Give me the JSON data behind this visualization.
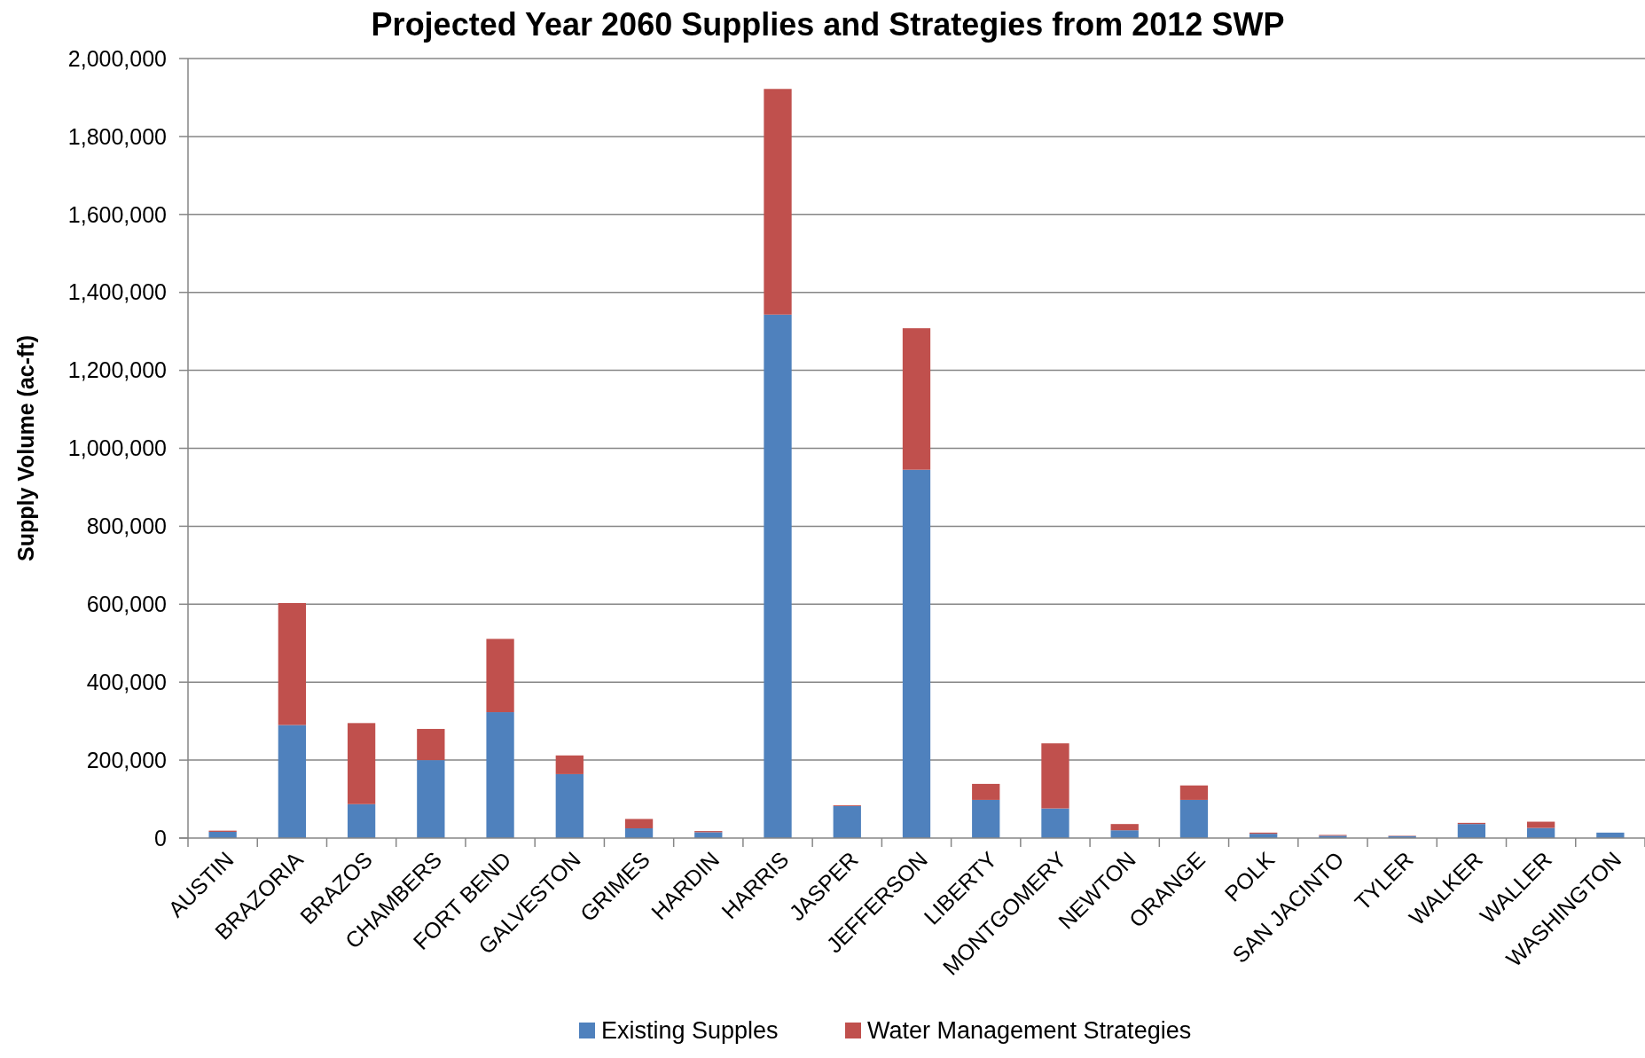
{
  "chart_data": {
    "type": "bar",
    "title": "Projected Year 2060 Supplies and Strategies from 2012 SWP",
    "ylabel": "Supply Volume (ac-ft)",
    "categories": [
      "AUSTIN",
      "BRAZORIA",
      "BRAZOS",
      "CHAMBERS",
      "FORT BEND",
      "GALVESTON",
      "GRIMES",
      "HARDIN",
      "HARRIS",
      "JASPER",
      "JEFFERSON",
      "LIBERTY",
      "MONTGOMERY",
      "NEWTON",
      "ORANGE",
      "POLK",
      "SAN JACINTO",
      "TYLER",
      "WALKER",
      "WALLER",
      "WASHINGTON"
    ],
    "series": [
      {
        "name": "Existing Supples",
        "color": "#4f81bd",
        "values": [
          16000,
          290000,
          87000,
          200000,
          323000,
          164000,
          25000,
          15000,
          1343000,
          82000,
          945000,
          98000,
          76000,
          20000,
          98000,
          11000,
          6000,
          5000,
          36000,
          26000,
          14000
        ]
      },
      {
        "name": "Water Management Strategies",
        "color": "#c0504d",
        "values": [
          3000,
          313000,
          208000,
          80000,
          188000,
          48000,
          24000,
          3000,
          579000,
          2000,
          363000,
          41000,
          167000,
          16000,
          37000,
          3000,
          2000,
          1000,
          3000,
          16000,
          0
        ]
      }
    ],
    "stacked": true,
    "ylim": [
      0,
      2000000
    ],
    "yticks": [
      {
        "value": 0,
        "label": "0"
      },
      {
        "value": 200000,
        "label": "200,000"
      },
      {
        "value": 400000,
        "label": "400,000"
      },
      {
        "value": 600000,
        "label": "600,000"
      },
      {
        "value": 800000,
        "label": "800,000"
      },
      {
        "value": 1000000,
        "label": "1,000,000"
      },
      {
        "value": 1200000,
        "label": "1,200,000"
      },
      {
        "value": 1400000,
        "label": "1,400,000"
      },
      {
        "value": 1600000,
        "label": "1,600,000"
      },
      {
        "value": 1800000,
        "label": "1,800,000"
      },
      {
        "value": 2000000,
        "label": "2,000,000"
      }
    ],
    "grid": "y",
    "legend": "bottom"
  }
}
